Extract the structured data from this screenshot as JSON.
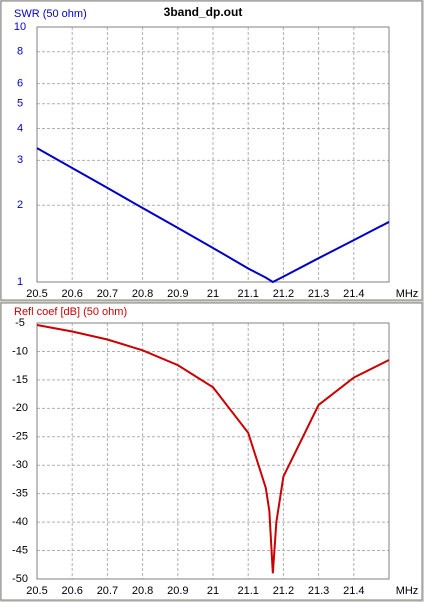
{
  "chart_data": [
    {
      "type": "line",
      "title": "3band_dp.out",
      "y_label": "SWR (50 ohm)",
      "x_unit": "MHz",
      "x": [
        20.5,
        20.6,
        20.7,
        20.8,
        20.9,
        21.0,
        21.1,
        21.15,
        21.17,
        21.2,
        21.3,
        21.4,
        21.5
      ],
      "values": [
        3.35,
        2.8,
        2.34,
        1.95,
        1.63,
        1.36,
        1.13,
        1.04,
        1.0,
        1.05,
        1.24,
        1.46,
        1.72
      ],
      "color": "#0000cc",
      "label_color": "#0000cc",
      "xlim": [
        20.5,
        21.5
      ],
      "xticks": [
        20.5,
        20.6,
        20.7,
        20.8,
        20.9,
        21,
        21.1,
        21.2,
        21.3,
        21.4
      ],
      "ylim": [
        1,
        10
      ],
      "yticks": [
        1,
        2,
        3,
        4,
        5,
        6,
        8,
        10
      ],
      "log_scale": true,
      "grid": true
    },
    {
      "type": "line",
      "y_label": "Refl coef [dB] (50 ohm)",
      "x_unit": "MHz",
      "x": [
        20.5,
        20.6,
        20.7,
        20.8,
        20.9,
        21.0,
        21.1,
        21.15,
        21.16,
        21.17,
        21.18,
        21.19,
        21.2,
        21.3,
        21.4,
        21.5
      ],
      "values": [
        -5.35,
        -6.5,
        -7.9,
        -9.8,
        -12.4,
        -16.3,
        -24.3,
        -34,
        -38,
        -49,
        -40,
        -36,
        -32,
        -19.4,
        -14.6,
        -11.5
      ],
      "color": "#cc0000",
      "label_color": "#000000",
      "xlim": [
        20.5,
        21.5
      ],
      "xticks": [
        20.5,
        20.6,
        20.7,
        20.8,
        20.9,
        21,
        21.1,
        21.2,
        21.3,
        21.4
      ],
      "ylim": [
        -50,
        -5
      ],
      "yticks": [
        -5,
        -10,
        -15,
        -20,
        -25,
        -30,
        -35,
        -40,
        -45,
        -50
      ],
      "log_scale": false,
      "grid": true
    }
  ]
}
